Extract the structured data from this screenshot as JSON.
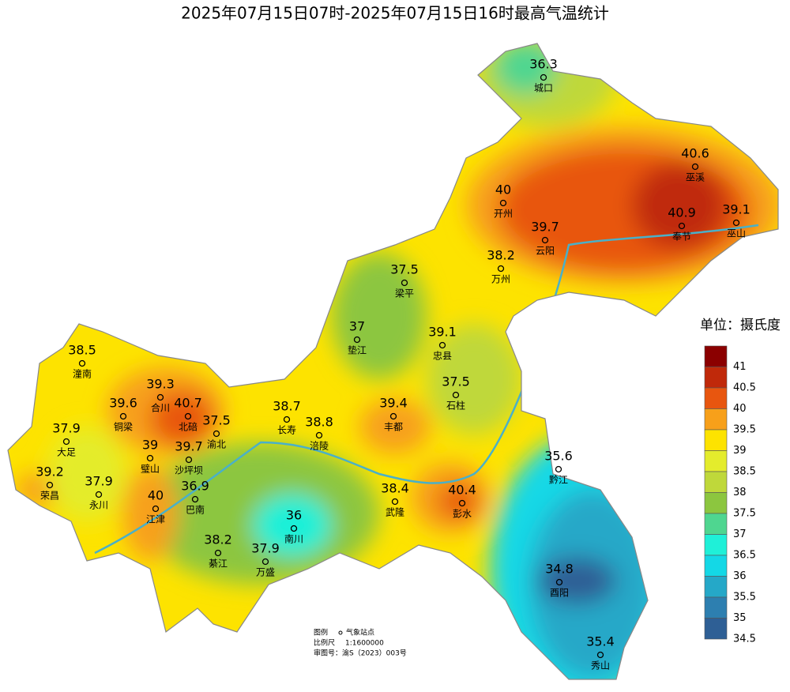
{
  "title": "2025年07月15日07时-2025年07月15日16时最高气温统计",
  "stations": [
    {
      "name": "城口",
      "value": 36.3
    },
    {
      "name": "巫溪",
      "value": 40.6
    },
    {
      "name": "开州",
      "value": 40
    },
    {
      "name": "奉节",
      "value": 40.9
    },
    {
      "name": "巫山",
      "value": 39.1
    },
    {
      "name": "云阳",
      "value": 39.7
    },
    {
      "name": "万州",
      "value": 38.2
    },
    {
      "name": "梁平",
      "value": 37.5
    },
    {
      "name": "垫江",
      "value": 37
    },
    {
      "name": "忠县",
      "value": 39.1
    },
    {
      "name": "潼南",
      "value": 38.5
    },
    {
      "name": "合川",
      "value": 39.3
    },
    {
      "name": "石柱",
      "value": 37.5
    },
    {
      "name": "铜梁",
      "value": 39.6
    },
    {
      "name": "北碚",
      "value": 40.7
    },
    {
      "name": "长寿",
      "value": 38.7
    },
    {
      "name": "丰都",
      "value": 39.4
    },
    {
      "name": "渝北",
      "value": 37.5
    },
    {
      "name": "涪陵",
      "value": 38.8
    },
    {
      "name": "大足",
      "value": 37.9
    },
    {
      "name": "璧山",
      "value": 39
    },
    {
      "name": "沙坪坝",
      "value": 39.7
    },
    {
      "name": "黔江",
      "value": 35.6
    },
    {
      "name": "荣昌",
      "value": 39.2
    },
    {
      "name": "永川",
      "value": 37.9
    },
    {
      "name": "巴南",
      "value": 36.9
    },
    {
      "name": "江津",
      "value": 40
    },
    {
      "name": "武隆",
      "value": 38.4
    },
    {
      "name": "彭水",
      "value": 40.4
    },
    {
      "name": "南川",
      "value": 36
    },
    {
      "name": "綦江",
      "value": 38.2
    },
    {
      "name": "万盛",
      "value": 37.9
    },
    {
      "name": "酉阳",
      "value": 34.8
    },
    {
      "name": "秀山",
      "value": 35.4
    }
  ],
  "legend": {
    "title": "单位：摄氏度",
    "levels": [
      {
        "value": 41,
        "color": "#8b0000"
      },
      {
        "value": 40.5,
        "color": "#c0290a"
      },
      {
        "value": 40,
        "color": "#e8560f"
      },
      {
        "value": 39.5,
        "color": "#f7a01a"
      },
      {
        "value": 39,
        "color": "#fde300"
      },
      {
        "value": 38.5,
        "color": "#e4ec2c"
      },
      {
        "value": 38,
        "color": "#bfd83a"
      },
      {
        "value": 37.5,
        "color": "#8cc63f"
      },
      {
        "value": 37,
        "color": "#4fd690"
      },
      {
        "value": 36.5,
        "color": "#1ff0d8"
      },
      {
        "value": 36,
        "color": "#14d8e6"
      },
      {
        "value": 35.5,
        "color": "#25a8c8"
      },
      {
        "value": 35,
        "color": "#2d7fb0"
      },
      {
        "value": 34.5,
        "color": "#2e5f95"
      }
    ]
  },
  "notes": {
    "legend_label": "图例",
    "legend_item": "气象站点",
    "scale_label": "比例尺",
    "scale": "1:1600000",
    "approval": "审图号：渝S（2023）003号"
  }
}
